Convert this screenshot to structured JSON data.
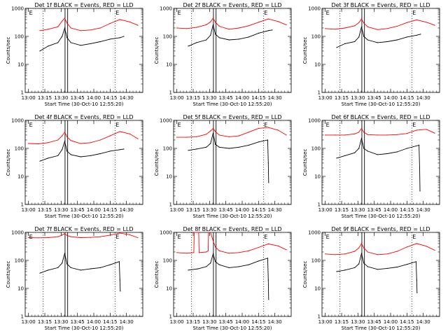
{
  "xlabel": "Start Time (30-Oct-10 12:55:20)",
  "ylabel": "Counts/sec",
  "colors": {
    "events": "#000000",
    "lld": "#ff0000",
    "frame": "#000000",
    "markers": "#000000"
  },
  "x_range_minutes": [
    -1,
    35
  ],
  "x_ticks": [
    {
      "t": 0,
      "label": "13:00"
    },
    {
      "t": 5,
      "label": "13:15"
    },
    {
      "t": 10,
      "label": "13:30"
    },
    {
      "t": 15,
      "label": "13:45"
    },
    {
      "t": 20,
      "label": "14:00"
    },
    {
      "t": 25,
      "label": "14:15"
    },
    {
      "t": 30,
      "label": "14:30"
    }
  ],
  "y_ticks": [
    {
      "v": 1,
      "label": "1"
    },
    {
      "v": 10,
      "label": "10"
    },
    {
      "v": 100,
      "label": "100"
    },
    {
      "v": 1000,
      "label": "1000"
    }
  ],
  "chart_data": [
    {
      "type": "line",
      "title": "Det 1f BLACK = Events, RED = LLD",
      "ylim": [
        1,
        1000
      ],
      "yscale": "log",
      "grid": false,
      "dotted_lines_t": [
        4.5,
        26.5
      ],
      "flag_lines_t": [
        11.2,
        12.0
      ],
      "marker_labels": [
        {
          "t": 0.2,
          "text": "E"
        },
        {
          "t": 26.7,
          "text": "E"
        }
      ],
      "series": [
        {
          "name": "BLACK = Events",
          "x": [
            3.5,
            6,
            9,
            10.3,
            11.1,
            11.8,
            13,
            16,
            19,
            22,
            25,
            28,
            29.2
          ],
          "y": [
            30,
            45,
            60,
            100,
            200,
            90,
            60,
            48,
            55,
            65,
            80,
            90,
            100
          ]
        },
        {
          "name": "RED = LLD",
          "x": [
            3.5,
            6,
            9,
            10.3,
            11.1,
            11.8,
            13,
            16,
            19,
            22,
            25,
            28,
            31,
            33.5
          ],
          "y": [
            160,
            180,
            220,
            350,
            450,
            300,
            200,
            160,
            170,
            200,
            290,
            400,
            330,
            250
          ]
        }
      ]
    },
    {
      "type": "line",
      "title": "Det 2f BLACK = Events, RED = LLD",
      "ylim": [
        1,
        1000
      ],
      "yscale": "log",
      "grid": false,
      "dotted_lines_t": [
        4.5,
        26.5
      ],
      "flag_lines_t": [
        11.2,
        12.0
      ],
      "marker_labels": [
        {
          "t": 0.2,
          "text": "E"
        },
        {
          "t": 26.7,
          "text": "E"
        }
      ],
      "series": [
        {
          "name": "BLACK = Events",
          "x": [
            3.5,
            6,
            9,
            10.3,
            11.1,
            11.8,
            13,
            16,
            19,
            22,
            25,
            28,
            29.2
          ],
          "y": [
            45,
            60,
            75,
            110,
            260,
            120,
            90,
            75,
            80,
            95,
            130,
            160,
            170
          ]
        },
        {
          "name": "RED = LLD",
          "x": [
            0,
            3,
            6,
            9,
            10.3,
            11.1,
            11.8,
            13,
            16,
            19,
            22,
            25,
            28,
            31,
            33.5
          ],
          "y": [
            200,
            190,
            210,
            260,
            330,
            450,
            320,
            230,
            180,
            200,
            240,
            320,
            420,
            340,
            260
          ]
        }
      ]
    },
    {
      "type": "line",
      "title": "Det 3f BLACK = Events, RED = LLD",
      "ylim": [
        1,
        1000
      ],
      "yscale": "log",
      "grid": false,
      "dotted_lines_t": [
        4.5,
        26.5
      ],
      "flag_lines_t": [
        11.2,
        12.0
      ],
      "marker_labels": [
        {
          "t": 0.2,
          "text": "E"
        },
        {
          "t": 26.7,
          "text": "E"
        }
      ],
      "series": [
        {
          "name": "BLACK = Events",
          "x": [
            3.5,
            6,
            9,
            10.3,
            11.1,
            11.8,
            13,
            16,
            19,
            22,
            25,
            28,
            29.2
          ],
          "y": [
            40,
            55,
            65,
            95,
            220,
            100,
            75,
            60,
            65,
            75,
            95,
            110,
            120
          ]
        },
        {
          "name": "RED = LLD",
          "x": [
            0,
            3,
            6,
            9,
            10.3,
            11.1,
            11.8,
            13,
            16,
            19,
            22,
            25,
            28,
            31,
            33.5
          ],
          "y": [
            190,
            180,
            200,
            240,
            310,
            420,
            300,
            220,
            175,
            190,
            230,
            310,
            390,
            320,
            250
          ]
        }
      ]
    },
    {
      "type": "line",
      "title": "Det 4f BLACK = Events, RED = LLD",
      "ylim": [
        1,
        1000
      ],
      "yscale": "log",
      "grid": false,
      "dotted_lines_t": [
        4.5,
        26.5
      ],
      "flag_lines_t": [
        11.2,
        12.0
      ],
      "marker_labels": [
        {
          "t": 0.2,
          "text": "E"
        },
        {
          "t": 26.7,
          "text": "E"
        }
      ],
      "series": [
        {
          "name": "BLACK = Events",
          "x": [
            3.5,
            6,
            9,
            10.3,
            11.1,
            11.8,
            13,
            16,
            19,
            22,
            25,
            28,
            29.2
          ],
          "y": [
            35,
            45,
            55,
            90,
            180,
            80,
            60,
            50,
            55,
            65,
            80,
            90,
            95
          ]
        },
        {
          "name": "RED = LLD",
          "x": [
            0,
            3,
            6,
            9,
            10.3,
            11.1,
            11.8,
            13,
            16,
            19,
            22,
            25,
            28,
            31,
            33.5
          ],
          "y": [
            150,
            145,
            160,
            200,
            280,
            380,
            260,
            190,
            150,
            160,
            200,
            280,
            400,
            330,
            220
          ]
        }
      ]
    },
    {
      "type": "line",
      "title": "Det 5f BLACK = Events, RED = LLD",
      "ylim": [
        1,
        1000
      ],
      "yscale": "log",
      "grid": false,
      "dotted_lines_t": [
        4.5,
        26.5
      ],
      "flag_lines_t": [
        11.2,
        12.0
      ],
      "marker_labels": [
        {
          "t": 0.2,
          "text": "E"
        },
        {
          "t": 26.7,
          "text": "E"
        }
      ],
      "series": [
        {
          "name": "BLACK = Events",
          "x": [
            3.5,
            6,
            9,
            10.3,
            11.1,
            11.8,
            13,
            16,
            19,
            22,
            25,
            27.8,
            28.0,
            28.1
          ],
          "y": [
            85,
            95,
            110,
            150,
            350,
            140,
            110,
            100,
            110,
            130,
            170,
            200,
            30,
            6
          ]
        },
        {
          "name": "RED = LLD",
          "x": [
            0,
            3,
            6,
            9,
            10.3,
            11.1,
            11.8,
            13,
            16,
            19,
            22,
            25,
            28,
            31,
            33.5
          ],
          "y": [
            250,
            250,
            260,
            320,
            420,
            520,
            400,
            300,
            260,
            280,
            380,
            520,
            560,
            450,
            300
          ]
        }
      ]
    },
    {
      "type": "line",
      "title": "Det 6f BLACK = Events, RED = LLD",
      "ylim": [
        1,
        1000
      ],
      "yscale": "log",
      "grid": false,
      "dotted_lines_t": [
        4.5,
        26.5
      ],
      "flag_lines_t": [
        11.2,
        12.0
      ],
      "marker_labels": [
        {
          "t": 0.2,
          "text": "E"
        },
        {
          "t": 26.7,
          "text": "E"
        }
      ],
      "series": [
        {
          "name": "BLACK = Events",
          "x": [
            3.5,
            6,
            9,
            10.3,
            11.1,
            11.8,
            13,
            16,
            19,
            22,
            25,
            28.7,
            28.9,
            29.0
          ],
          "y": [
            45,
            55,
            70,
            100,
            230,
            100,
            80,
            60,
            65,
            75,
            100,
            130,
            20,
            3
          ]
        },
        {
          "name": "RED = LLD",
          "x": [
            0,
            3,
            6,
            9,
            10.3,
            11.1,
            11.8,
            13,
            16,
            19,
            22,
            25,
            28,
            31,
            33.5
          ],
          "y": [
            300,
            300,
            300,
            330,
            380,
            520,
            380,
            310,
            300,
            300,
            310,
            340,
            450,
            480,
            350
          ]
        }
      ]
    },
    {
      "type": "line",
      "title": "Det 7f BLACK = Events, RED = LLD",
      "ylim": [
        1,
        1000
      ],
      "yscale": "log",
      "grid": false,
      "dotted_lines_t": [
        4.5,
        26.5
      ],
      "flag_lines_t": [
        11.2,
        12.0
      ],
      "marker_labels": [
        {
          "t": 0.2,
          "text": "E"
        },
        {
          "t": 26.7,
          "text": "E"
        }
      ],
      "series": [
        {
          "name": "BLACK = Events",
          "x": [
            3.5,
            6,
            9,
            10.3,
            11.1,
            11.8,
            13,
            16,
            19,
            22,
            25,
            27.8,
            28.0,
            28.1
          ],
          "y": [
            35,
            45,
            55,
            80,
            180,
            75,
            55,
            45,
            50,
            55,
            70,
            90,
            20,
            8
          ]
        },
        {
          "name": "RED = LLD",
          "x": [
            0,
            3,
            6,
            9,
            10.3,
            11.1,
            11.8,
            13,
            16,
            19,
            22,
            25,
            28,
            31,
            33.5
          ],
          "y": [
            650,
            640,
            650,
            700,
            800,
            900,
            780,
            700,
            650,
            660,
            700,
            800,
            950,
            820,
            650
          ]
        }
      ]
    },
    {
      "type": "line",
      "title": "Det 8f BLACK = Events, RED = LLD",
      "ylim": [
        1,
        1000
      ],
      "yscale": "log",
      "grid": false,
      "dotted_lines_t": [
        4.5,
        26.5
      ],
      "flag_lines_t": [
        11.2,
        12.0
      ],
      "marker_labels": [
        {
          "t": 0.2,
          "text": "E"
        },
        {
          "t": 26.7,
          "text": "E"
        }
      ],
      "series": [
        {
          "name": "BLACK = Events",
          "x": [
            3.5,
            6.5,
            9,
            10.3,
            11.1,
            11.8,
            13,
            16,
            19,
            22,
            25,
            27.8,
            28.0,
            28.1
          ],
          "y": [
            45,
            50,
            60,
            80,
            170,
            90,
            70,
            55,
            60,
            70,
            95,
            120,
            20,
            4
          ]
        },
        {
          "name": "RED = LLD",
          "x": [
            0,
            3,
            5.2,
            5.3,
            6.7,
            6.8,
            9,
            9.6,
            9.7,
            10.3,
            11.1,
            11.8,
            13,
            16,
            19,
            22,
            25,
            28,
            31,
            33.5
          ],
          "y": [
            190,
            180,
            190,
            1000,
            1000,
            190,
            200,
            220,
            1000,
            1000,
            500,
            300,
            220,
            180,
            190,
            220,
            290,
            390,
            330,
            240
          ]
        }
      ]
    },
    {
      "type": "line",
      "title": "Det 9f BLACK = Events, RED = LLD",
      "ylim": [
        1,
        1000
      ],
      "yscale": "log",
      "grid": false,
      "dotted_lines_t": [
        4.5,
        26.5
      ],
      "flag_lines_t": [
        11.2,
        12.0
      ],
      "marker_labels": [
        {
          "t": 0.2,
          "text": "E"
        },
        {
          "t": 26.7,
          "text": "E"
        }
      ],
      "series": [
        {
          "name": "BLACK = Events",
          "x": [
            3.5,
            6,
            9,
            10.3,
            11.1,
            11.8,
            13,
            16,
            19,
            22,
            25,
            27.8,
            28.0,
            28.1
          ],
          "y": [
            40,
            45,
            55,
            75,
            180,
            80,
            60,
            48,
            52,
            58,
            72,
            90,
            20,
            7
          ]
        },
        {
          "name": "RED = LLD",
          "x": [
            0,
            3,
            6,
            9,
            10.3,
            11.1,
            11.8,
            13,
            16,
            19,
            22,
            25,
            28,
            31,
            33.5
          ],
          "y": [
            170,
            160,
            170,
            210,
            280,
            400,
            280,
            200,
            160,
            170,
            210,
            300,
            400,
            320,
            230
          ]
        }
      ]
    }
  ]
}
